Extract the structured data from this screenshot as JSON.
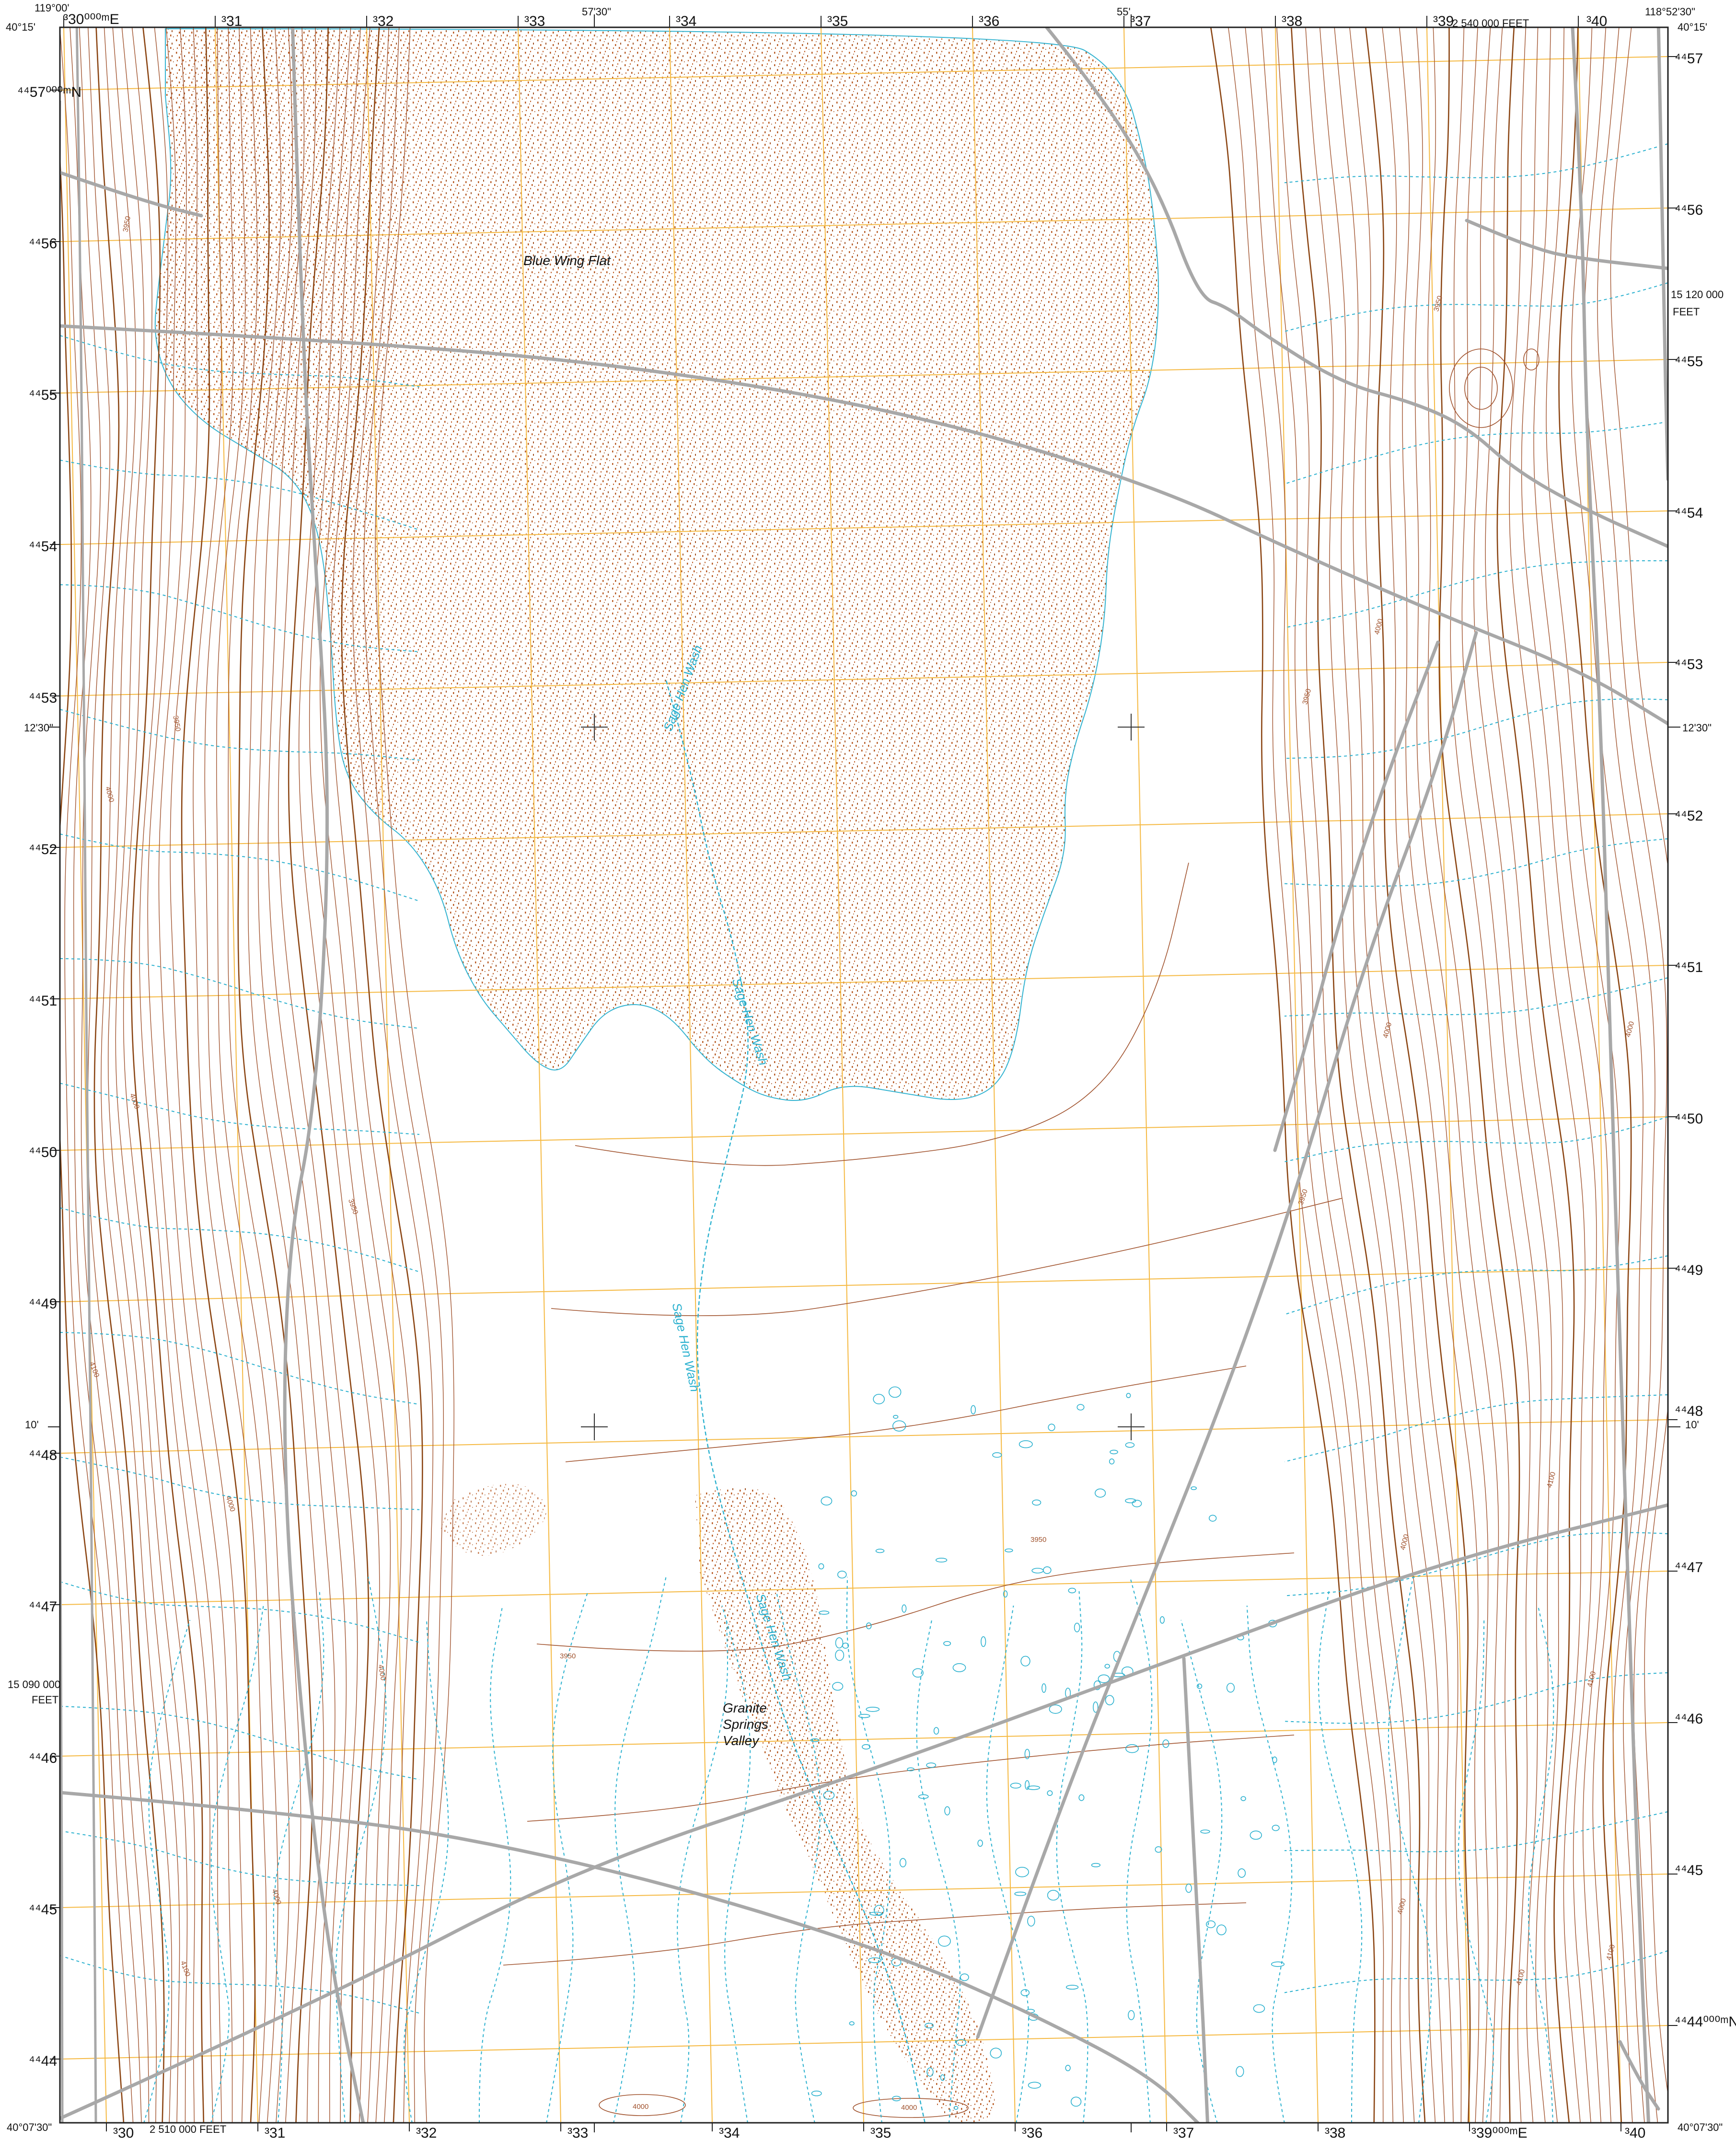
{
  "colors": {
    "background": "#ffffff",
    "contour": "#a0522d",
    "contour_index": "#8b4513",
    "grid": "#f5b942",
    "road": "#a8a8a8",
    "water": "#2bb1cf",
    "flat_stipple": "#b5541b",
    "frame": "#222222"
  },
  "corners": {
    "top_left_lon": "119°00'",
    "top_left_lat": "40°15'",
    "top_right_lon": "118°52'30\"",
    "top_right_lat": "40°15'",
    "bottom_left_lat": "40°07'30\"",
    "bottom_right_lat": "40°07'30\""
  },
  "top_ticks": {
    "first_easting": "³30⁰⁰⁰ᵐE",
    "mid_lon": "57'30\"",
    "lon_55": "55'",
    "state_plane_top": "2 540 000 FEET",
    "eastings": [
      "³31",
      "³32",
      "³33",
      "³34",
      "³35",
      "³36",
      "³37",
      "³38",
      "³39",
      "³40"
    ]
  },
  "bottom_ticks": {
    "state_plane_bottom": "2 510 000 FEET",
    "eastings": [
      "³30",
      "³31",
      "³32",
      "³33",
      "³34",
      "³35",
      "³36",
      "³37",
      "³38",
      "³39⁰⁰⁰ᵐE",
      "³40"
    ]
  },
  "left_ticks": {
    "first_northing": "⁴⁴57⁰⁰⁰ᵐN",
    "northings": [
      "⁴⁴56",
      "⁴⁴55",
      "⁴⁴54",
      "⁴⁴53",
      "⁴⁴52",
      "⁴⁴51",
      "⁴⁴50",
      "⁴⁴49",
      "⁴⁴48",
      "⁴⁴47",
      "⁴⁴46",
      "⁴⁴45",
      "⁴⁴44"
    ],
    "lat_1230": "12'30\"",
    "lat_10": "10'",
    "state_plane_left": "15 090 000",
    "state_plane_left_unit": "FEET"
  },
  "right_ticks": {
    "northings": [
      "⁴⁴57",
      "⁴⁴56",
      "⁴⁴55",
      "⁴⁴54",
      "⁴⁴53",
      "⁴⁴52",
      "⁴⁴51",
      "⁴⁴50",
      "⁴⁴49",
      "⁴⁴48",
      "⁴⁴47",
      "⁴⁴46",
      "⁴⁴45"
    ],
    "last_northing": "⁴⁴44⁰⁰⁰ᵐN",
    "lat_1230": "12'30\"",
    "lat_10": "10'",
    "state_plane_right": "15 120 000",
    "state_plane_right_unit": "FEET"
  },
  "features": {
    "blue_wing_flat": "Blue Wing Flat",
    "sage_hen_wash": "Sage Hen Wash",
    "granite_springs_valley_1": "Granite",
    "granite_springs_valley_2": "Springs",
    "granite_springs_valley_3": "Valley"
  },
  "elevations": [
    "3950",
    "4000",
    "4100",
    "4050"
  ]
}
